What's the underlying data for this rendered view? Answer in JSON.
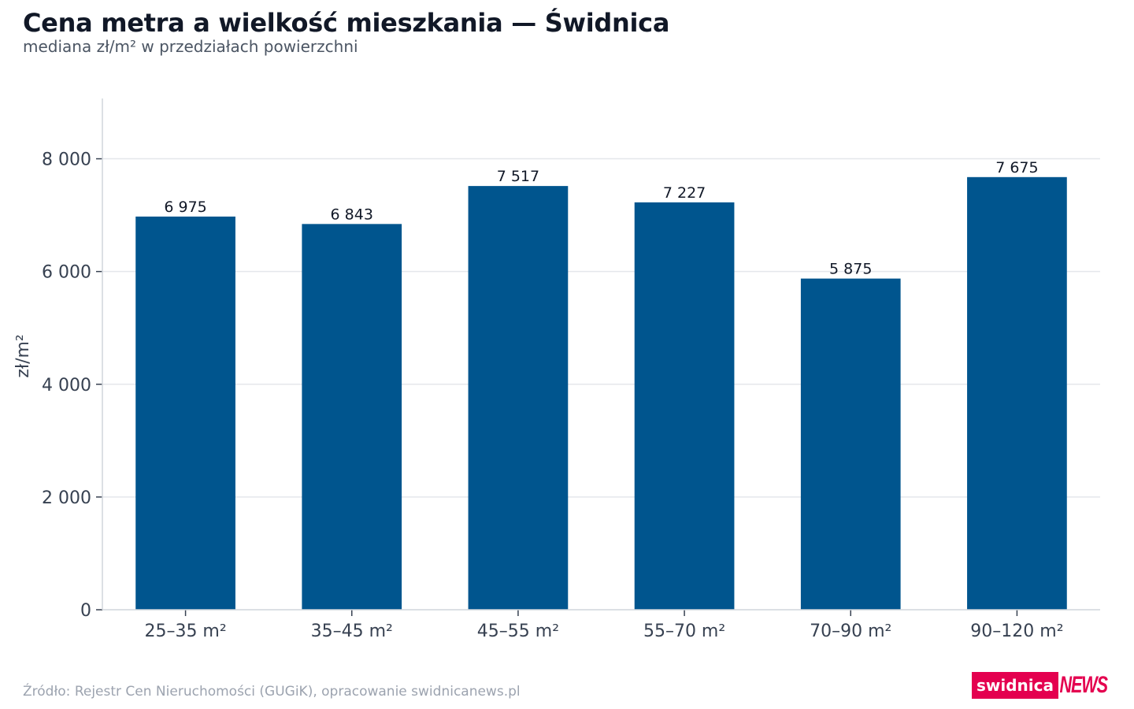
{
  "header": {
    "title": "Cena metra a wielkość mieszkania — Świdnica",
    "subtitle": "mediana zł/m² w przedziałach powierzchni"
  },
  "footer": {
    "source": "Źródło: Rejestr Cen Nieruchomości (GUGiK), opracowanie swidnicanews.pl",
    "logo_part_a": "swidnica",
    "logo_part_b": "NEWS"
  },
  "colors": {
    "bar": "#00558e",
    "grid": "#e5e7eb",
    "axis": "#d1d5db",
    "brand": "#e4004f"
  },
  "chart_data": {
    "type": "bar",
    "title": "Cena metra a wielkość mieszkania — Świdnica",
    "subtitle": "mediana zł/m² w przedziałach powierzchni",
    "xlabel": "",
    "ylabel": "zł/m²",
    "categories": [
      "25–35 m²",
      "35–45 m²",
      "45–55 m²",
      "55–70 m²",
      "70–90 m²",
      "90–120 m²"
    ],
    "values": [
      6975,
      6843,
      7517,
      7227,
      5875,
      7675
    ],
    "value_labels": [
      "6 975",
      "6 843",
      "7 517",
      "7 227",
      "5 875",
      "7 675"
    ],
    "ylim": [
      0,
      9000
    ],
    "yticks": [
      0,
      2000,
      4000,
      6000,
      8000
    ],
    "ytick_labels": [
      "0",
      "2 000",
      "4 000",
      "6 000",
      "8 000"
    ],
    "grid": true,
    "legend": "none"
  }
}
